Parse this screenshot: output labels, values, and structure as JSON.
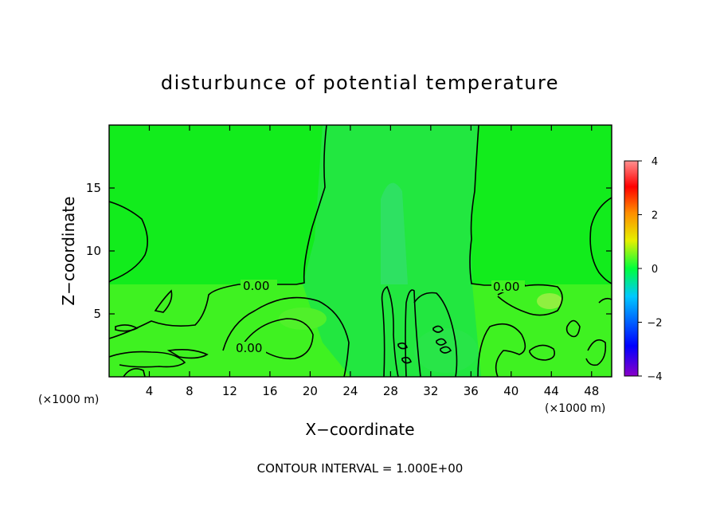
{
  "chart_data": {
    "type": "heatmap",
    "title": "disturbunce of potential temperature",
    "xlabel": "X−coordinate",
    "ylabel": "Z−coordinate",
    "x_unit": "(×1000 m)",
    "x_unit_right": "(×1000 m)",
    "xlim": [
      0,
      50
    ],
    "ylim": [
      0,
      20
    ],
    "x_ticks": [
      4,
      8,
      12,
      16,
      20,
      24,
      28,
      32,
      36,
      40,
      44,
      48
    ],
    "y_ticks": [
      5,
      10,
      15
    ],
    "colorbar": {
      "range": [
        -4,
        4
      ],
      "ticks": [
        4,
        2,
        0,
        -2,
        -4
      ],
      "colors": [
        "#8a00c8",
        "#0000ff",
        "#00c8ff",
        "#00ff3c",
        "#e6f000",
        "#ff8c00",
        "#ff0000",
        "#ff9090"
      ]
    },
    "contour_labels": [
      {
        "text": "0.00",
        "x": 15.5,
        "z": 7.0
      },
      {
        "text": "0.00",
        "x": 13.9,
        "z": 2.2
      },
      {
        "text": "0.00",
        "x": 41.5,
        "z": 7.0
      }
    ],
    "note": "CONTOUR INTERVAL = 1.000E+00",
    "grid": false
  }
}
